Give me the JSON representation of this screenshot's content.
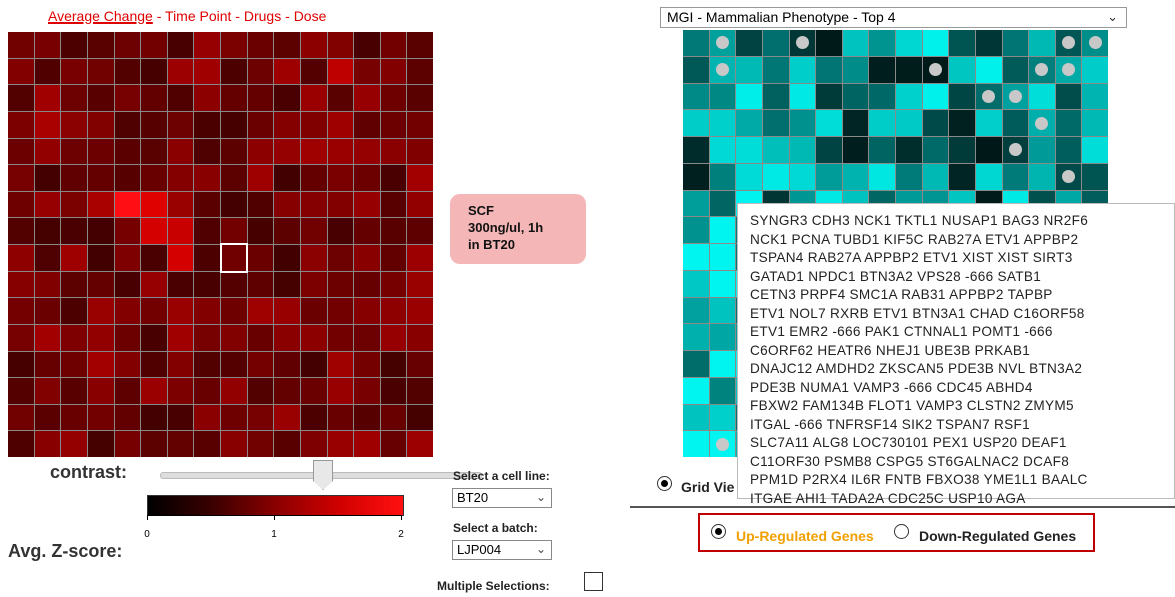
{
  "sort_links": {
    "average_change": "Average Change",
    "sep": " - ",
    "time_point": "Time Point",
    "drugs": "Drugs",
    "dose": "Dose"
  },
  "tooltip": {
    "line1": "SCF",
    "line2": "300ng/ul, 1h",
    "line3": "in BT20"
  },
  "contrast_label": "contrast:",
  "contrast_value": 0.5,
  "zscore_label": "Avg. Z-score:",
  "colorbar": {
    "ticks": [
      "0",
      "1",
      "2"
    ]
  },
  "cell_line": {
    "label": "Select a cell line:",
    "value": "BT20"
  },
  "batch": {
    "label": "Select a batch:",
    "value": "LJP004"
  },
  "multiple_selections": {
    "label": "Multiple Selections:"
  },
  "library_select": {
    "value": "MGI - Mammalian Phenotype - Top 4"
  },
  "gene_list": "SYNGR3 CDH3 NCK1 TKTL1 NUSAP1 BAG3 NR2F6\nNCK1 PCNA TUBD1 KIF5C RAB27A ETV1 APPBP2\nTSPAN4 RAB27A APPBP2 ETV1 XIST XIST SIRT3\nGATAD1 NPDC1 BTN3A2 VPS28 -666 SATB1\nCETN3 PRPF4 SMC1A RAB31 APPBP2 TAPBP\nETV1 NOL7 RXRB ETV1 BTN3A1 CHAD C16ORF58\nETV1 EMR2 -666 PAK1 CTNNAL1 POMT1 -666\nC6ORF62 HEATR6 NHEJ1 UBE3B PRKAB1\nDNAJC12 AMDHD2 ZKSCAN5 PDE3B NVL BTN3A2\nPDE3B NUMA1 VAMP3 -666 CDC45 ABHD4\nFBXW2 FAM134B FLOT1 VAMP3 CLSTN2 ZMYM5\nITGAL -666 TNFRSF14 SIK2 TSPAN7 RSF1\nSLC7A11 ALG8 LOC730101 PEX1 USP20 DEAF1\nC11ORF30 PSMB8 CSPG5 ST6GALNAC2 DCAF8\nPPM1D P2RX4 IL6R FNTB FBXO38 YME1L1 BAALC\nITGAE AHI1 TADA2A CDC25C USP10 AGA",
  "grid_view_label": "Grid Vie",
  "regulation": {
    "up_label": "Up-Regulated Genes",
    "down_label": "Down-Regulated Genes"
  },
  "colors": {
    "heat_accent": "#ff1010",
    "cyan_accent": "#00e5e5",
    "up_label": "#f0a000",
    "highlight_box": "#c00000"
  }
}
